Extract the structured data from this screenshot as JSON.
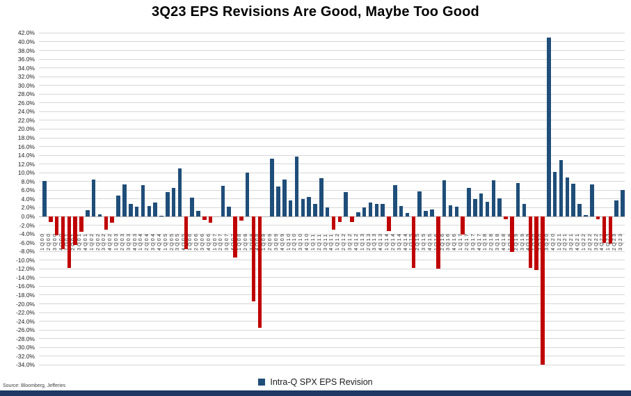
{
  "source": "Source: Bloomberg, Jefferies",
  "legend": {
    "label": "Intra-Q SPX EPS Revision"
  },
  "colors": {
    "positive": "#1f4e79",
    "negative": "#c00000",
    "grid": "#d6d6d6",
    "legend_marker": "#1f4e79",
    "footer_bar": "#1f3864"
  },
  "chart_data": {
    "type": "bar",
    "title": "3Q23 EPS Revisions Are Good, Maybe Too Good",
    "series_name": "Intra-Q SPX EPS Revision",
    "xlabel": "",
    "ylabel": "",
    "ylim": [
      -34,
      42
    ],
    "ytick_step": 2,
    "grid": true,
    "legend_position": "bottom",
    "color_rule": "navy if value >= 0 else red",
    "ytick_values": [
      42,
      40,
      38,
      36,
      34,
      32,
      30,
      28,
      26,
      24,
      22,
      20,
      18,
      16,
      14,
      12,
      10,
      8,
      6,
      4,
      2,
      0,
      -2,
      -4,
      -6,
      -8,
      -10,
      -12,
      -14,
      -16,
      -18,
      -20,
      -22,
      -24,
      -26,
      -28,
      -30,
      -32,
      -34
    ],
    "ytick_labels": [
      "42.0%",
      "40.0%",
      "38.0%",
      "36.0%",
      "34.0%",
      "32.0%",
      "30.0%",
      "28.0%",
      "26.0%",
      "24.0%",
      "22.0%",
      "20.0%",
      "18.0%",
      "16.0%",
      "14.0%",
      "12.0%",
      "10.0%",
      "8.0%",
      "6.0%",
      "4.0%",
      "2.0%",
      "0.0%",
      "-2.0%",
      "-4.0%",
      "-6.0%",
      "-8.0%",
      "-10.0%",
      "-12.0%",
      "-14.0%",
      "-16.0%",
      "-18.0%",
      "-20.0%",
      "-22.0%",
      "-24.0%",
      "-26.0%",
      "-28.0%",
      "-30.0%",
      "-32.0%",
      "-34.0%"
    ],
    "categories": [
      "1Q00",
      "2Q00",
      "3Q00",
      "4Q00",
      "1Q01",
      "2Q01",
      "3Q01",
      "4Q01",
      "1Q02",
      "2Q02",
      "3Q02",
      "4Q02",
      "1Q03",
      "2Q03",
      "3Q03",
      "4Q03",
      "1Q04",
      "2Q04",
      "3Q04",
      "4Q04",
      "1Q05",
      "2Q05",
      "3Q05",
      "4Q05",
      "1Q06",
      "2Q06",
      "3Q06",
      "4Q06",
      "1Q07",
      "2Q07",
      "3Q07",
      "4Q07",
      "1Q08",
      "2Q08",
      "3Q08",
      "4Q08",
      "1Q09",
      "2Q09",
      "3Q09",
      "4Q09",
      "1Q10",
      "2Q10",
      "3Q10",
      "4Q10",
      "1Q11",
      "2Q11",
      "3Q11",
      "4Q11",
      "1Q12",
      "2Q12",
      "3Q12",
      "4Q12",
      "1Q13",
      "2Q13",
      "3Q13",
      "4Q13",
      "1Q14",
      "2Q14",
      "3Q14",
      "4Q14",
      "1Q15",
      "2Q15",
      "3Q15",
      "4Q15",
      "1Q16",
      "2Q16",
      "3Q16",
      "4Q16",
      "1Q17",
      "2Q17",
      "3Q17",
      "4Q17",
      "1Q18",
      "2Q18",
      "3Q18",
      "4Q18",
      "1Q19",
      "2Q19",
      "3Q19",
      "4Q19",
      "1Q20",
      "2Q20",
      "3Q20",
      "4Q20",
      "1Q21",
      "2Q21",
      "3Q21",
      "4Q21",
      "1Q22",
      "2Q22",
      "3Q22",
      "4Q22",
      "1Q23",
      "2Q23",
      "3Q23"
    ],
    "values": [
      8.1,
      -1.2,
      -4.3,
      -7.5,
      -11.8,
      -6.6,
      -3.5,
      1.5,
      8.5,
      0.4,
      -3.0,
      -1.4,
      4.8,
      7.3,
      2.9,
      2.2,
      7.1,
      2.4,
      3.2,
      0.2,
      5.6,
      6.6,
      11.0,
      -7.5,
      4.3,
      1.2,
      -0.8,
      -1.4,
      0.0,
      7.0,
      2.2,
      -9.4,
      -0.9,
      10.1,
      -19.5,
      -25.5,
      0.0,
      13.3,
      6.8,
      8.5,
      3.6,
      13.7,
      4.0,
      4.4,
      2.8,
      8.8,
      2.0,
      -3.0,
      -1.2,
      5.6,
      -1.2,
      1.0,
      2.1,
      3.2,
      2.9,
      2.9,
      -3.3,
      7.2,
      2.4,
      0.8,
      -11.8,
      5.7,
      1.2,
      1.6,
      -12.0,
      8.3,
      2.5,
      2.2,
      -4.1,
      6.6,
      4.0,
      5.3,
      3.3,
      8.3,
      4.1,
      -0.6,
      -8.2,
      7.6,
      2.8,
      -11.8,
      -12.2,
      -34.0,
      41.0,
      10.2,
      12.9,
      9.0,
      7.5,
      2.8,
      0.3,
      7.4,
      -0.6,
      -6.0,
      -6.2,
      3.6,
      6.1
    ]
  }
}
